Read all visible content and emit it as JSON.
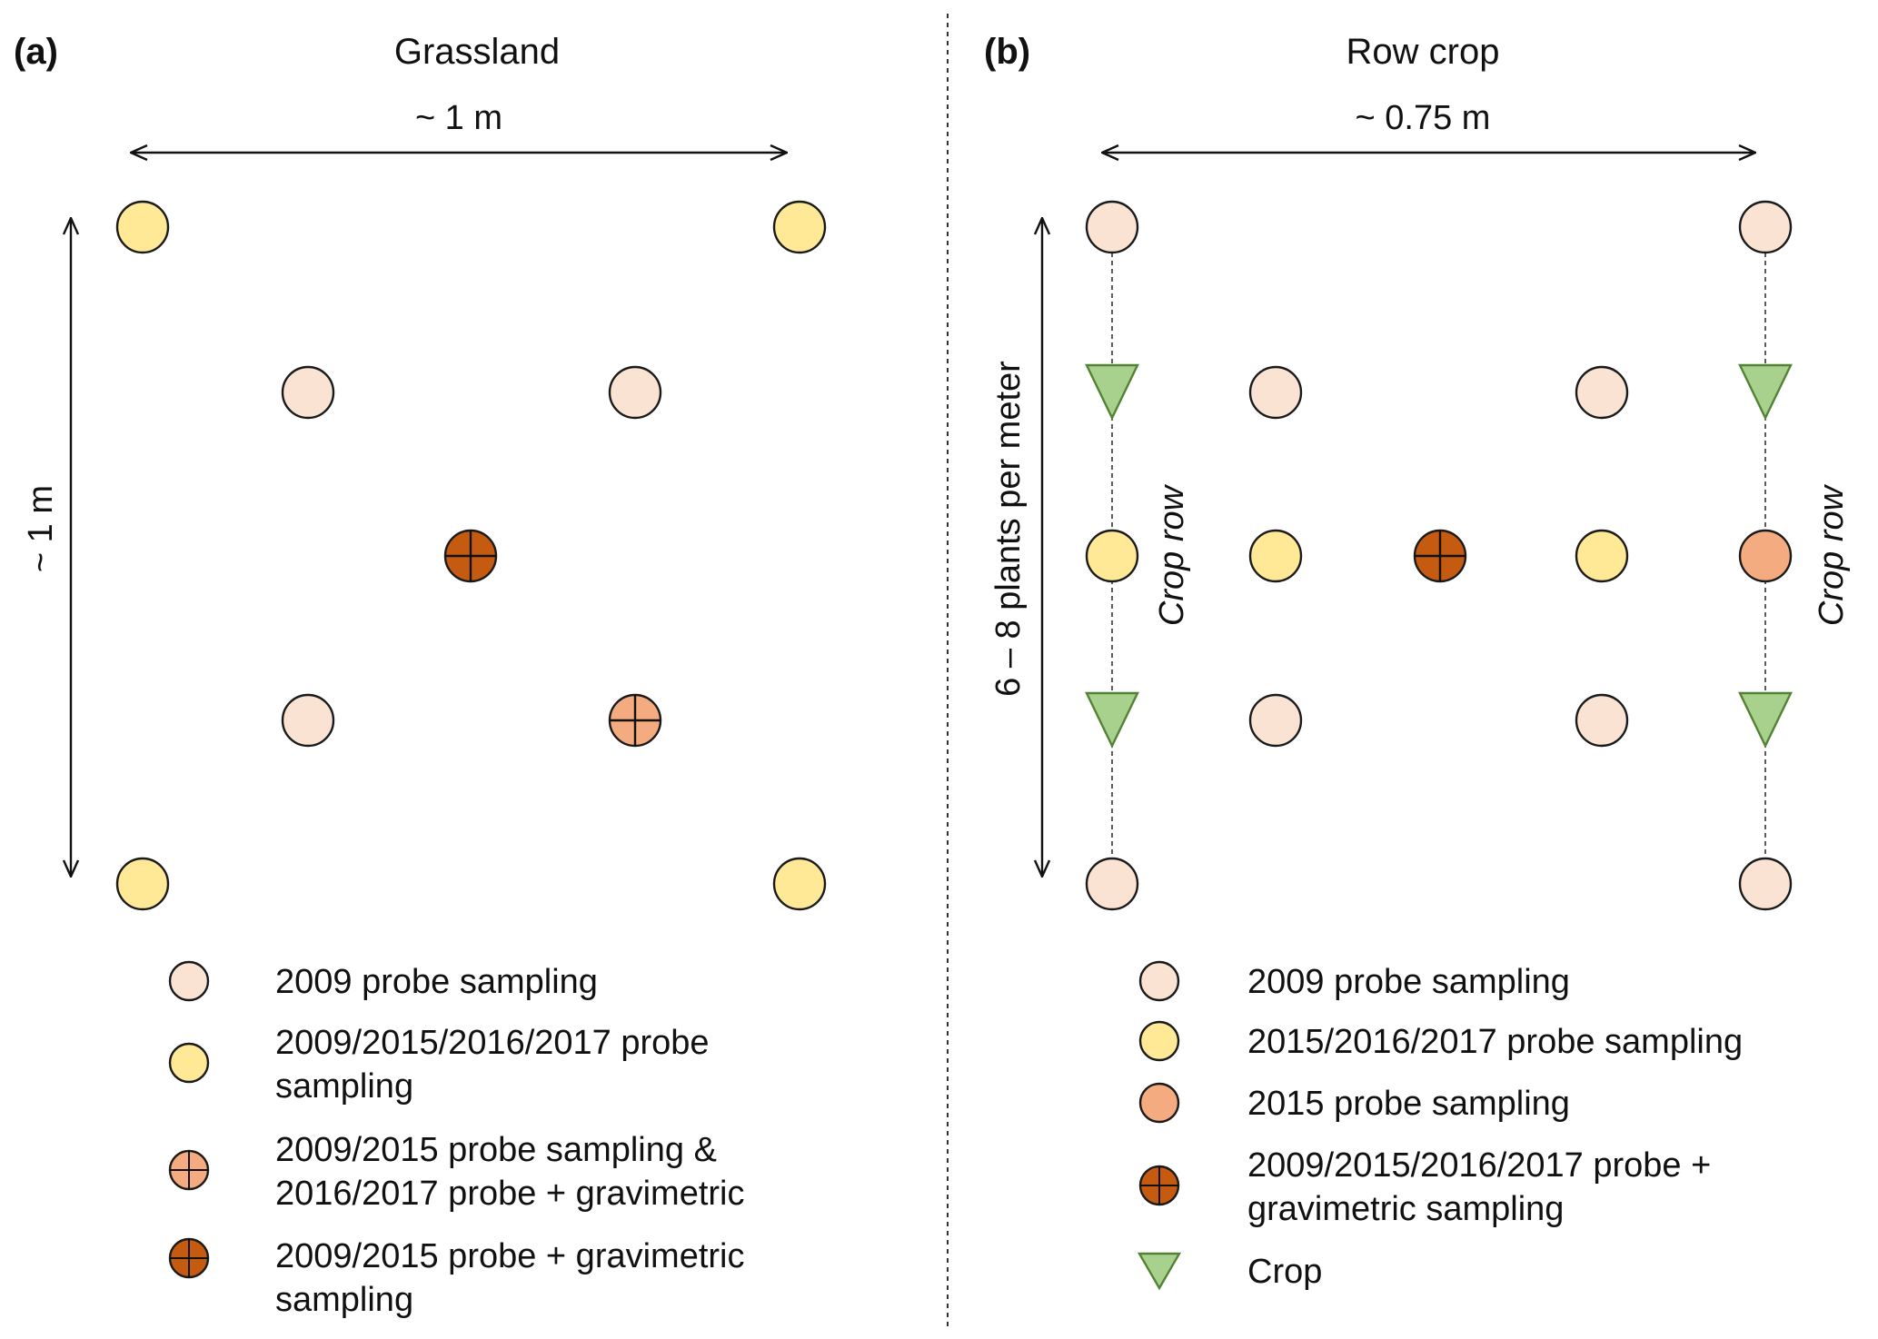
{
  "colors": {
    "light_fill": "#fbe3d4",
    "yellow_fill": "#ffe896",
    "salmon_fill": "#f5ab80",
    "dark_fill": "#c55a11",
    "green_fill": "#a9d18e",
    "green_stroke": "#548235",
    "stroke": "#1a1a1a"
  },
  "panel_a": {
    "label": "(a)",
    "title": "Grassland",
    "width_label": "~ 1 m",
    "height_label": "~ 1 m",
    "legend": [
      {
        "symbol": "light-circle",
        "lines": [
          "2009 probe sampling"
        ]
      },
      {
        "symbol": "yellow-circle",
        "lines": [
          "2009/2015/2016/2017 probe",
          "sampling"
        ]
      },
      {
        "symbol": "salmon-cross-circle",
        "lines": [
          "2009/2015 probe sampling &",
          "2016/2017 probe + gravimetric"
        ]
      },
      {
        "symbol": "dark-cross-circle",
        "lines": [
          "2009/2015 probe + gravimetric",
          "sampling"
        ]
      }
    ]
  },
  "panel_b": {
    "label": "(b)",
    "title": "Row crop",
    "width_label": "~ 0.75 m",
    "height_label": "6 – 8 plants per meter",
    "row_label_left": "Crop row",
    "row_label_right": "Crop row",
    "legend": [
      {
        "symbol": "light-circle",
        "lines": [
          "2009 probe sampling"
        ]
      },
      {
        "symbol": "yellow-circle",
        "lines": [
          "2015/2016/2017 probe sampling"
        ]
      },
      {
        "symbol": "salmon-circle",
        "lines": [
          "2015 probe sampling"
        ]
      },
      {
        "symbol": "dark-cross-circle",
        "lines": [
          "2009/2015/2016/2017 probe +",
          "gravimetric sampling"
        ]
      },
      {
        "symbol": "green-triangle",
        "lines": [
          "Crop"
        ]
      }
    ]
  }
}
